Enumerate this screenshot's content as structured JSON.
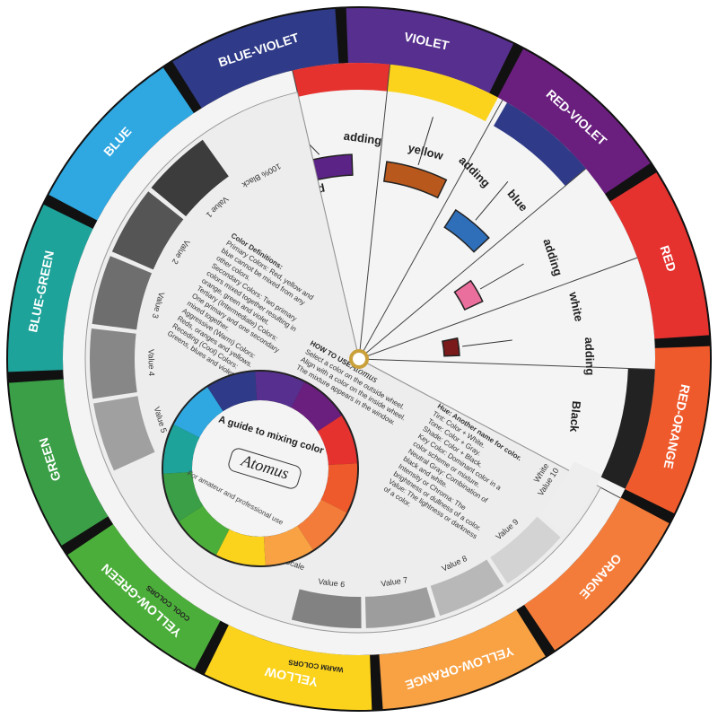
{
  "ring": [
    {
      "label": "VIOLET",
      "color": "#57308f"
    },
    {
      "label": "RED-VIOLET",
      "color": "#6a1f7e"
    },
    {
      "label": "RED",
      "color": "#e5322f"
    },
    {
      "label": "RED-ORANGE",
      "color": "#ef5a2c"
    },
    {
      "label": "ORANGE",
      "color": "#f47c3a"
    },
    {
      "label": "YELLOW-ORANGE",
      "color": "#f8a244"
    },
    {
      "label": "YELLOW",
      "color": "#fbd31c"
    },
    {
      "label": "YELLOW-GREEN",
      "color": "#4cae3a"
    },
    {
      "label": "GREEN",
      "color": "#3a9f46"
    },
    {
      "label": "BLUE-GREEN",
      "color": "#1ea39a"
    },
    {
      "label": "BLUE",
      "color": "#2fa8e1"
    },
    {
      "label": "BLUE-VIOLET",
      "color": "#2f3b88"
    }
  ],
  "mixes": [
    {
      "word": "adding",
      "color_word": "red",
      "swatch": "#5a2385"
    },
    {
      "word": "adding",
      "color_word": "yellow",
      "swatch": "#b8581c"
    },
    {
      "word": "adding",
      "color_word": "blue",
      "swatch": "#2f6fba"
    },
    {
      "word": "adding",
      "color_word": "white",
      "swatch": "#ea6f9c"
    },
    {
      "word": "adding",
      "color_word": "Black",
      "swatch": "#7a1a1a"
    }
  ],
  "gray_scale_left": {
    "title": "Gray Scale",
    "top_label": "100% Black",
    "values": [
      "Value 1",
      "Value 2",
      "Value 3",
      "Value 4",
      "Value 5"
    ]
  },
  "gray_scale_bottom": {
    "title": "Gray Scale",
    "values": [
      "Value 6",
      "Value 7",
      "Value 8",
      "Value 9",
      "Value 10"
    ],
    "end_label": "White"
  },
  "definitions": [
    "Color Definitions:",
    "Primary Colors: Red, yellow and",
    "blue cannot be mixed from any",
    "other colors.",
    "Secondary Colors: Two primary",
    "colors mixed together resulting in",
    "orange, green and violet.",
    "Tertiary (Intermediate) Colors:",
    "One primary and one secondary",
    "mixed together.",
    "Aggressive (Warm) Colors:",
    "Reds, oranges and yellows.",
    "Receding (Cool) Colors:",
    "Greens, blues and violets."
  ],
  "how_to_use": {
    "title": "HOW TO USE",
    "brand": "Atomus",
    "lines": [
      "Select a color on the outside wheel.",
      "Align with a color on the inside wheel.",
      "The mixture appears in the window."
    ]
  },
  "glossary": [
    "Hue: Another name for color.",
    "Tint: Color + White.",
    "Tone: Color + Gray.",
    "Shade: Color + Black.",
    "Key Color: Dominant color in a",
    "color scheme or mixture.",
    "Neutral Gray: Combination of",
    "black and white.",
    "Intensity or Chroma: The",
    "brightness or dullness of a color.",
    "Value: The lightness or darkness",
    "of a color."
  ],
  "guide": {
    "title": "A guide to mixing color",
    "brand": "Atomus",
    "subtitle": "For amateur and professional use"
  },
  "cool_colors": "COOL COLORS",
  "warm_colors": "WARM COLORS"
}
